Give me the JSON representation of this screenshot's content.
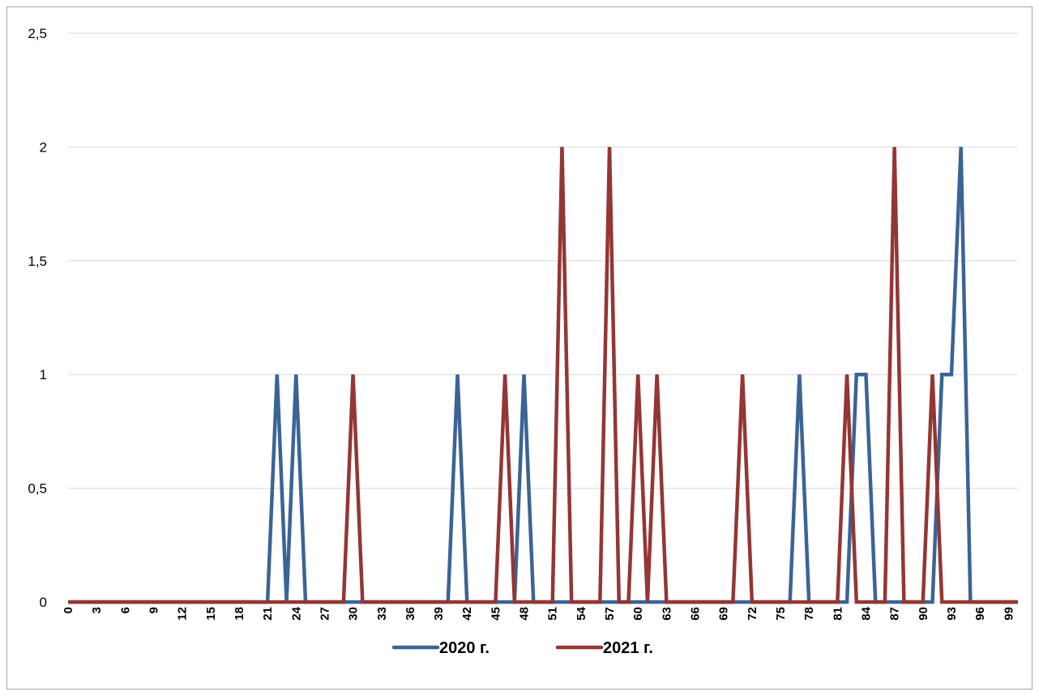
{
  "chart_data": {
    "type": "line",
    "x": [
      0,
      1,
      2,
      3,
      4,
      5,
      6,
      7,
      8,
      9,
      10,
      11,
      12,
      13,
      14,
      15,
      16,
      17,
      18,
      19,
      20,
      21,
      22,
      23,
      24,
      25,
      26,
      27,
      28,
      29,
      30,
      31,
      32,
      33,
      34,
      35,
      36,
      37,
      38,
      39,
      40,
      41,
      42,
      43,
      44,
      45,
      46,
      47,
      48,
      49,
      50,
      51,
      52,
      53,
      54,
      55,
      56,
      57,
      58,
      59,
      60,
      61,
      62,
      63,
      64,
      65,
      66,
      67,
      68,
      69,
      70,
      71,
      72,
      73,
      74,
      75,
      76,
      77,
      78,
      79,
      80,
      81,
      82,
      83,
      84,
      85,
      86,
      87,
      88,
      89,
      90,
      91,
      92,
      93,
      94,
      95,
      96,
      97,
      98,
      99,
      100
    ],
    "x_tick_labels": [
      "0",
      "3",
      "6",
      "9",
      "12",
      "15",
      "18",
      "21",
      "24",
      "27",
      "30",
      "33",
      "36",
      "39",
      "42",
      "45",
      "48",
      "51",
      "54",
      "57",
      "60",
      "63",
      "66",
      "69",
      "72",
      "75",
      "78",
      "81",
      "84",
      "87",
      "90",
      "93",
      "96",
      "99"
    ],
    "ylim": [
      0,
      2.5
    ],
    "y_ticks": [
      0,
      0.5,
      1,
      1.5,
      2,
      2.5
    ],
    "y_tick_labels": [
      "0",
      "0,5",
      "1",
      "1,5",
      "2",
      "2,5"
    ],
    "grid": "horizontal",
    "legend_position": "bottom",
    "series": [
      {
        "name": "2020 г.",
        "color": "#3b6496",
        "values": [
          0,
          0,
          0,
          0,
          0,
          0,
          0,
          0,
          0,
          0,
          0,
          0,
          0,
          0,
          0,
          0,
          0,
          0,
          0,
          0,
          0,
          0,
          1,
          0,
          1,
          0,
          0,
          0,
          0,
          0,
          0,
          0,
          0,
          0,
          0,
          0,
          0,
          0,
          0,
          0,
          0,
          1,
          0,
          0,
          0,
          0,
          0,
          0,
          1,
          0,
          0,
          0,
          0,
          0,
          0,
          0,
          0,
          0,
          0,
          0,
          0,
          0,
          0,
          0,
          0,
          0,
          0,
          0,
          0,
          0,
          0,
          0,
          0,
          0,
          0,
          0,
          0,
          1,
          0,
          0,
          0,
          0,
          0,
          1,
          1,
          0,
          0,
          0,
          0,
          0,
          0,
          0,
          1,
          1,
          2,
          0,
          0,
          0,
          0,
          0,
          0
        ]
      },
      {
        "name": "2021 г.",
        "color": "#943634",
        "values": [
          0,
          0,
          0,
          0,
          0,
          0,
          0,
          0,
          0,
          0,
          0,
          0,
          0,
          0,
          0,
          0,
          0,
          0,
          0,
          0,
          0,
          0,
          0,
          0,
          0,
          0,
          0,
          0,
          0,
          0,
          1,
          0,
          0,
          0,
          0,
          0,
          0,
          0,
          0,
          0,
          0,
          0,
          0,
          0,
          0,
          0,
          1,
          0,
          0,
          0,
          0,
          0,
          2,
          0,
          0,
          0,
          0,
          2,
          0,
          0,
          1,
          0,
          1,
          0,
          0,
          0,
          0,
          0,
          0,
          0,
          0,
          1,
          0,
          0,
          0,
          0,
          0,
          0,
          0,
          0,
          0,
          0,
          1,
          0,
          0,
          0,
          0,
          2,
          0,
          0,
          0,
          1,
          0,
          0,
          0,
          0,
          0,
          0,
          0,
          0,
          0
        ]
      }
    ]
  }
}
